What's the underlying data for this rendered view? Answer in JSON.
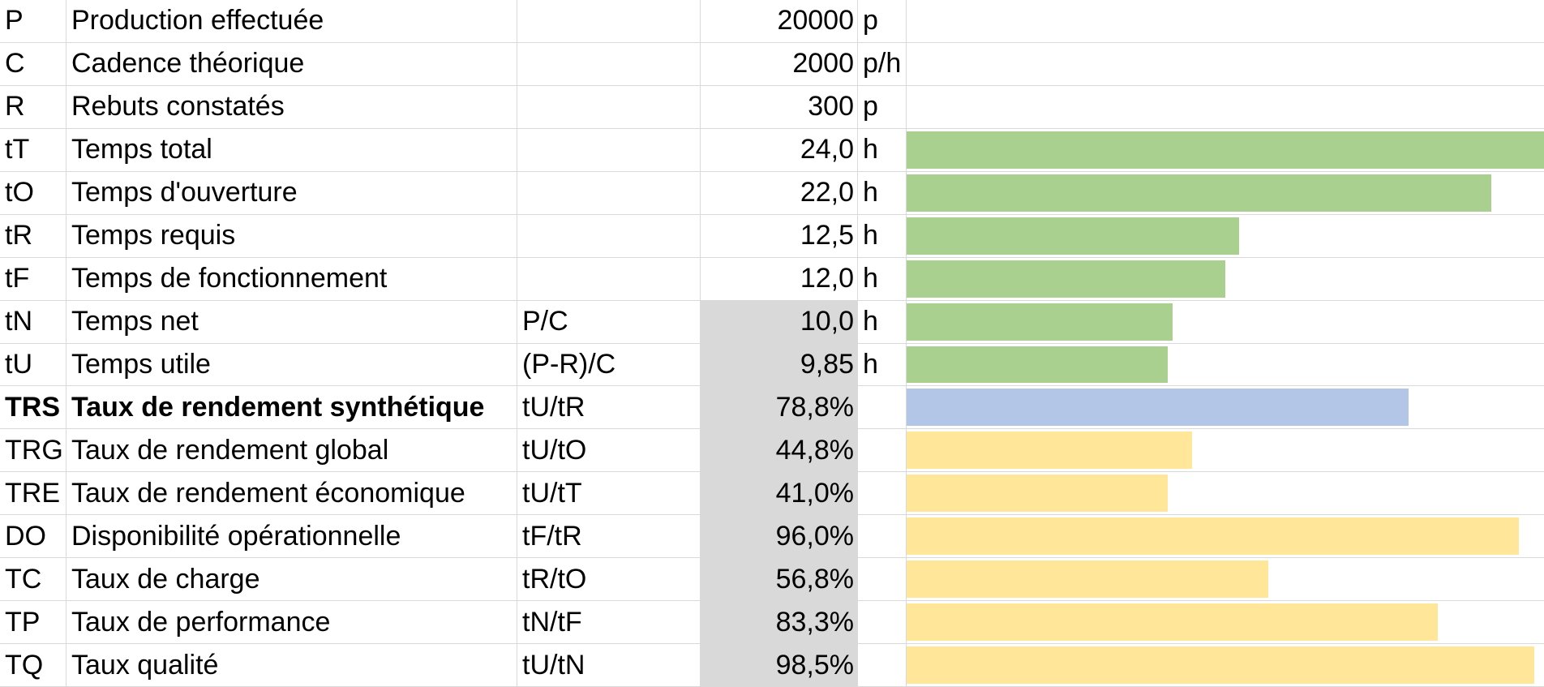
{
  "rows": [
    {
      "code": "P",
      "label": "Production effectuée",
      "formula": "",
      "value": "20000",
      "unit": "p",
      "shaded": false,
      "bar": null
    },
    {
      "code": "C",
      "label": "Cadence théorique",
      "formula": "",
      "value": "2000",
      "unit": "p/h",
      "shaded": false,
      "bar": null
    },
    {
      "code": "R",
      "label": "Rebuts constatés",
      "formula": "",
      "value": "300",
      "unit": "p",
      "shaded": false,
      "bar": null
    },
    {
      "code": "tT",
      "label": "Temps total",
      "formula": "",
      "value": "24,0",
      "unit": "h",
      "shaded": false,
      "bar": {
        "fraction": 1.0,
        "color": "#a9d08e"
      }
    },
    {
      "code": "tO",
      "label": "Temps d'ouverture",
      "formula": "",
      "value": "22,0",
      "unit": "h",
      "shaded": false,
      "bar": {
        "fraction": 0.917,
        "color": "#a9d08e"
      }
    },
    {
      "code": "tR",
      "label": "Temps requis",
      "formula": "",
      "value": "12,5",
      "unit": "h",
      "shaded": false,
      "bar": {
        "fraction": 0.521,
        "color": "#a9d08e"
      }
    },
    {
      "code": "tF",
      "label": "Temps de fonctionnement",
      "formula": "",
      "value": "12,0",
      "unit": "h",
      "shaded": false,
      "bar": {
        "fraction": 0.5,
        "color": "#a9d08e"
      }
    },
    {
      "code": "tN",
      "label": "Temps net",
      "formula": "P/C",
      "value": "10,0",
      "unit": "h",
      "shaded": true,
      "bar": {
        "fraction": 0.417,
        "color": "#a9d08e"
      }
    },
    {
      "code": "tU",
      "label": "Temps utile",
      "formula": "(P-R)/C",
      "value": "9,85",
      "unit": "h",
      "shaded": true,
      "bar": {
        "fraction": 0.41,
        "color": "#a9d08e"
      }
    },
    {
      "code": "TRS",
      "label": "Taux de rendement synthétique",
      "formula": "tU/tR",
      "value": "78,8%",
      "unit": "",
      "shaded": true,
      "bold": true,
      "bar": {
        "fraction": 0.788,
        "color": "#b4c6e7"
      }
    },
    {
      "code": "TRG",
      "label": "Taux de rendement global",
      "formula": "tU/tO",
      "value": "44,8%",
      "unit": "",
      "shaded": true,
      "bar": {
        "fraction": 0.448,
        "color": "#ffe699"
      }
    },
    {
      "code": "TRE",
      "label": "Taux de rendement économique",
      "formula": "tU/tT",
      "value": "41,0%",
      "unit": "",
      "shaded": true,
      "bar": {
        "fraction": 0.41,
        "color": "#ffe699"
      }
    },
    {
      "code": "DO",
      "label": "Disponibilité opérationnelle",
      "formula": "tF/tR",
      "value": "96,0%",
      "unit": "",
      "shaded": true,
      "bar": {
        "fraction": 0.96,
        "color": "#ffe699"
      }
    },
    {
      "code": "TC",
      "label": "Taux de charge",
      "formula": "tR/tO",
      "value": "56,8%",
      "unit": "",
      "shaded": true,
      "bar": {
        "fraction": 0.568,
        "color": "#ffe699"
      }
    },
    {
      "code": "TP",
      "label": "Taux de performance",
      "formula": "tN/tF",
      "value": "83,3%",
      "unit": "",
      "shaded": true,
      "bar": {
        "fraction": 0.833,
        "color": "#ffe699"
      }
    },
    {
      "code": "TQ",
      "label": "Taux qualité",
      "formula": "tU/tN",
      "value": "98,5%",
      "unit": "",
      "shaded": true,
      "bar": {
        "fraction": 0.985,
        "color": "#ffe699"
      }
    }
  ]
}
